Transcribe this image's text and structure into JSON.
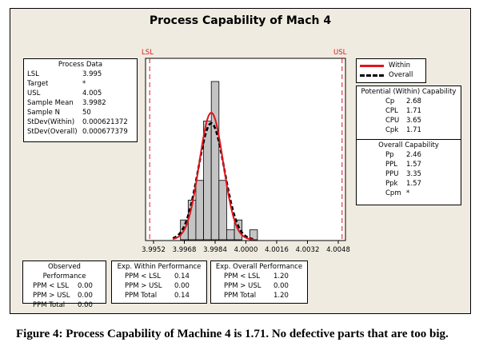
{
  "title": "Process Capability of Mach 4",
  "spec_labels": {
    "lsl": "LSL",
    "usl": "USL"
  },
  "process_data": {
    "header": "Process Data",
    "rows": [
      {
        "label": "LSL",
        "value": "3.995"
      },
      {
        "label": "Target",
        "value": "*"
      },
      {
        "label": "USL",
        "value": "4.005"
      },
      {
        "label": "Sample Mean",
        "value": "3.9982"
      },
      {
        "label": "Sample N",
        "value": "50"
      },
      {
        "label": "StDev(Within)",
        "value": "0.000621372"
      },
      {
        "label": "StDev(Overall)",
        "value": "0.000677379"
      }
    ]
  },
  "legend": {
    "items": [
      {
        "label": "Within",
        "color": "#e0141e",
        "style": "solid"
      },
      {
        "label": "Overall",
        "color": "#000000",
        "style": "dashed"
      }
    ]
  },
  "potential_capability": {
    "header": "Potential (Within) Capability",
    "rows": [
      {
        "label": "Cp",
        "value": "2.68"
      },
      {
        "label": "CPL",
        "value": "1.71"
      },
      {
        "label": "CPU",
        "value": "3.65"
      },
      {
        "label": "Cpk",
        "value": "1.71"
      }
    ]
  },
  "overall_capability": {
    "header": "Overall Capability",
    "rows": [
      {
        "label": "Pp",
        "value": "2.46"
      },
      {
        "label": "PPL",
        "value": "1.57"
      },
      {
        "label": "PPU",
        "value": "3.35"
      },
      {
        "label": "Ppk",
        "value": "1.57"
      },
      {
        "label": "Cpm",
        "value": "*"
      }
    ]
  },
  "performance": [
    {
      "header": "Observed Performance",
      "rows": [
        {
          "label": "PPM < LSL",
          "value": "0.00"
        },
        {
          "label": "PPM > USL",
          "value": "0.00"
        },
        {
          "label": "PPM Total",
          "value": "0.00"
        }
      ]
    },
    {
      "header": "Exp. Within Performance",
      "rows": [
        {
          "label": "PPM < LSL",
          "value": "0.14"
        },
        {
          "label": "PPM > USL",
          "value": "0.00"
        },
        {
          "label": "PPM Total",
          "value": "0.14"
        }
      ]
    },
    {
      "header": "Exp. Overall Performance",
      "rows": [
        {
          "label": "PPM < LSL",
          "value": "1.20"
        },
        {
          "label": "PPM > USL",
          "value": "0.00"
        },
        {
          "label": "PPM Total",
          "value": "1.20"
        }
      ]
    }
  ],
  "caption": "Figure 4:  Process Capability of Machine 4 is 1.71.  No defective parts that are too big.",
  "chart_data": {
    "type": "bar",
    "title": "Process Capability of Mach 4",
    "xlabel": "",
    "ylabel": "",
    "x_ticks": [
      "3.9952",
      "3.9968",
      "3.9984",
      "4.0000",
      "4.0016",
      "4.0032",
      "4.0048"
    ],
    "xlim": [
      3.9948,
      4.0052
    ],
    "bin_width": 0.0004,
    "bin_centers": [
      3.9968,
      3.9972,
      3.9976,
      3.998,
      3.9984,
      3.9988,
      3.9992,
      3.9996,
      4.0,
      4.0004
    ],
    "values": [
      2,
      4,
      6,
      12,
      16,
      6,
      1,
      2,
      0,
      1
    ],
    "lsl": 3.995,
    "usl": 4.005,
    "series": [
      {
        "name": "Within",
        "type": "normal_curve",
        "mean": 3.9982,
        "stdev": 0.000621372,
        "color": "#e0141e"
      },
      {
        "name": "Overall",
        "type": "normal_curve",
        "mean": 3.9982,
        "stdev": 0.000677379,
        "color": "#000000"
      }
    ],
    "grid": false,
    "legend_position": "right"
  }
}
